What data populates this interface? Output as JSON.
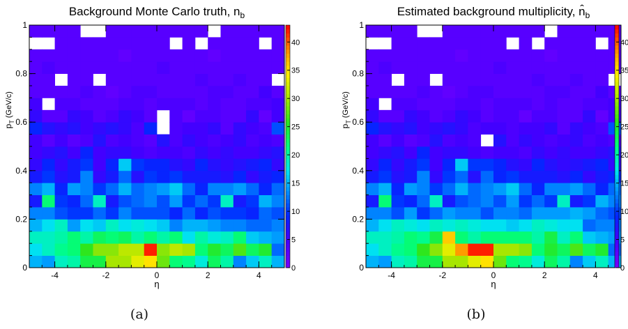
{
  "captions": [
    "(a)",
    "(b)"
  ],
  "chart_data": [
    {
      "type": "heatmap",
      "title": "Background Monte Carlo truth, n_b",
      "xlabel": "η",
      "ylabel": "p_T (GeV/c)",
      "xlim": [
        -5,
        5
      ],
      "ylim": [
        0,
        1
      ],
      "zlim": [
        0,
        43
      ],
      "x_ticks": [
        "-4",
        "-2",
        "0",
        "2",
        "4"
      ],
      "y_ticks": [
        "0",
        "0.2",
        "0.4",
        "0.6",
        "0.8",
        "1"
      ],
      "z_ticks": [
        "0",
        "5",
        "10",
        "15",
        "20",
        "25",
        "30",
        "35",
        "40"
      ],
      "x_bins": 20,
      "y_bins": 20,
      "rows_from_bottom": [
        [
          15,
          14,
          19,
          20,
          24,
          24,
          30,
          30,
          33,
          35,
          28,
          22,
          21,
          18,
          23,
          20,
          13,
          16,
          19,
          15
        ],
        [
          17,
          19,
          21,
          22,
          26,
          29,
          29,
          31,
          31,
          42,
          29,
          31,
          30,
          22,
          25,
          23,
          27,
          23,
          25,
          12
        ],
        [
          19,
          19,
          20,
          22,
          20,
          23,
          22,
          23,
          20,
          22,
          20,
          22,
          17,
          20,
          18,
          19,
          22,
          16,
          15,
          14
        ],
        [
          15,
          17,
          19,
          14,
          17,
          16,
          19,
          17,
          18,
          17,
          16,
          13,
          15,
          15,
          14,
          13,
          13,
          12,
          12,
          13
        ],
        [
          13,
          13,
          11,
          10,
          10,
          12,
          10,
          13,
          11,
          11,
          11,
          9,
          12,
          9,
          11,
          10,
          10,
          9,
          12,
          11
        ],
        [
          8,
          22,
          10,
          9,
          12,
          19,
          8,
          11,
          12,
          13,
          11,
          14,
          10,
          12,
          10,
          19,
          8,
          10,
          15,
          13
        ],
        [
          13,
          15,
          9,
          14,
          13,
          10,
          12,
          15,
          12,
          13,
          14,
          16,
          12,
          9,
          13,
          13,
          14,
          12,
          9,
          12
        ],
        [
          8,
          10,
          7,
          8,
          13,
          6,
          8,
          12,
          7,
          10,
          9,
          10,
          8,
          8,
          8,
          7,
          9,
          6,
          8,
          9
        ],
        [
          6,
          9,
          6,
          8,
          10,
          5,
          9,
          16,
          10,
          9,
          9,
          7,
          6,
          9,
          7,
          6,
          7,
          8,
          9,
          6
        ],
        [
          5,
          6,
          7,
          5,
          9,
          5,
          6,
          6,
          5,
          4,
          5,
          5,
          4,
          6,
          5,
          6,
          5,
          5,
          6,
          7
        ],
        [
          5,
          3,
          5,
          3,
          4,
          7,
          4,
          5,
          4,
          3,
          7,
          4,
          6,
          5,
          4,
          5,
          6,
          4,
          5,
          4
        ],
        [
          9,
          7,
          6,
          7,
          5,
          6,
          7,
          6,
          4,
          9,
          0,
          4,
          5,
          5,
          6,
          3,
          6,
          5,
          4,
          11
        ],
        [
          6,
          3,
          3,
          6,
          5,
          3,
          4,
          6,
          5,
          3,
          0,
          4,
          2,
          4,
          4,
          3,
          3,
          6,
          2,
          5
        ],
        [
          5,
          0,
          4,
          4,
          3,
          3,
          3,
          4,
          4,
          3,
          4,
          4,
          4,
          3,
          4,
          3,
          3,
          4,
          4,
          5
        ],
        [
          3,
          3,
          3,
          3,
          4,
          3,
          2,
          3,
          4,
          4,
          3,
          3,
          3,
          3,
          4,
          4,
          3,
          3,
          5,
          3
        ],
        [
          3,
          3,
          0,
          3,
          3,
          0,
          3,
          3,
          3,
          3,
          3,
          3,
          3,
          4,
          3,
          3,
          4,
          3,
          3,
          0
        ],
        [
          3,
          4,
          3,
          3,
          3,
          3,
          3,
          3,
          3,
          3,
          4,
          3,
          3,
          3,
          3,
          3,
          3,
          3,
          3,
          3
        ],
        [
          3,
          3,
          3,
          3,
          3,
          3,
          3,
          2,
          3,
          3,
          3,
          3,
          3,
          3,
          2,
          3,
          3,
          3,
          3,
          3
        ],
        [
          0,
          0,
          3,
          3,
          3,
          3,
          3,
          3,
          3,
          3,
          3,
          0,
          3,
          0,
          3,
          3,
          3,
          3,
          0,
          3
        ],
        [
          3,
          3,
          3,
          3,
          0,
          0,
          3,
          3,
          3,
          3,
          3,
          3,
          3,
          3,
          0,
          3,
          3,
          3,
          3,
          3
        ]
      ]
    },
    {
      "type": "heatmap",
      "title": "Estimated background multiplicity, n̂_b",
      "xlabel": "η",
      "ylabel": "p_T (GeV/c)",
      "xlim": [
        -5,
        5
      ],
      "ylim": [
        0,
        1
      ],
      "zlim": [
        0,
        43
      ],
      "x_ticks": [
        "-4",
        "-2",
        "0",
        "2",
        "4"
      ],
      "y_ticks": [
        "0",
        "0.2",
        "0.4",
        "0.6",
        "0.8",
        "1"
      ],
      "z_ticks": [
        "0",
        "5",
        "10",
        "15",
        "20",
        "25",
        "30",
        "35",
        "40"
      ],
      "x_bins": 20,
      "y_bins": 20,
      "rows_from_bottom": [
        [
          15,
          14,
          19,
          20,
          24,
          24,
          30,
          30,
          33,
          35,
          28,
          22,
          21,
          18,
          23,
          20,
          13,
          16,
          19,
          15
        ],
        [
          17,
          19,
          21,
          22,
          26,
          29,
          33,
          38,
          42,
          42,
          30,
          30,
          29,
          22,
          25,
          23,
          27,
          23,
          25,
          12
        ],
        [
          19,
          19,
          20,
          22,
          21,
          24,
          36,
          22,
          20,
          22,
          22,
          22,
          22,
          20,
          24,
          19,
          22,
          16,
          15,
          14
        ],
        [
          15,
          17,
          19,
          18,
          17,
          19,
          18,
          19,
          18,
          17,
          17,
          16,
          17,
          19,
          18,
          17,
          17,
          12,
          13,
          13
        ],
        [
          13,
          13,
          11,
          14,
          10,
          12,
          14,
          13,
          13,
          11,
          13,
          13,
          12,
          14,
          14,
          14,
          15,
          14,
          12,
          11
        ],
        [
          8,
          22,
          10,
          9,
          12,
          19,
          8,
          11,
          12,
          13,
          11,
          14,
          10,
          12,
          10,
          19,
          8,
          10,
          15,
          13
        ],
        [
          13,
          15,
          9,
          14,
          13,
          10,
          12,
          15,
          12,
          13,
          14,
          16,
          12,
          9,
          13,
          13,
          14,
          12,
          9,
          12
        ],
        [
          8,
          10,
          7,
          8,
          13,
          6,
          10,
          12,
          7,
          12,
          9,
          10,
          8,
          8,
          8,
          7,
          9,
          6,
          8,
          9
        ],
        [
          6,
          9,
          6,
          8,
          10,
          5,
          9,
          16,
          10,
          10,
          9,
          7,
          6,
          9,
          7,
          6,
          7,
          8,
          9,
          6
        ],
        [
          5,
          6,
          7,
          5,
          9,
          5,
          6,
          6,
          5,
          4,
          5,
          5,
          4,
          6,
          5,
          6,
          5,
          5,
          6,
          7
        ],
        [
          5,
          3,
          5,
          3,
          4,
          7,
          4,
          5,
          4,
          0,
          7,
          4,
          6,
          5,
          4,
          5,
          6,
          4,
          5,
          4
        ],
        [
          9,
          7,
          6,
          7,
          5,
          6,
          7,
          6,
          4,
          5,
          5,
          4,
          5,
          5,
          6,
          3,
          6,
          5,
          4,
          11
        ],
        [
          6,
          3,
          3,
          6,
          5,
          3,
          4,
          6,
          5,
          3,
          4,
          4,
          2,
          4,
          4,
          3,
          3,
          6,
          2,
          5
        ],
        [
          5,
          0,
          4,
          4,
          3,
          3,
          3,
          4,
          4,
          3,
          4,
          4,
          4,
          3,
          4,
          3,
          3,
          4,
          4,
          5
        ],
        [
          3,
          3,
          3,
          3,
          4,
          3,
          2,
          3,
          4,
          4,
          3,
          3,
          3,
          3,
          4,
          4,
          3,
          3,
          5,
          3
        ],
        [
          3,
          3,
          0,
          3,
          3,
          0,
          3,
          3,
          3,
          3,
          3,
          3,
          3,
          4,
          3,
          3,
          4,
          3,
          3,
          0
        ],
        [
          3,
          4,
          3,
          3,
          3,
          3,
          3,
          3,
          3,
          3,
          4,
          3,
          3,
          3,
          3,
          3,
          3,
          3,
          3,
          3
        ],
        [
          3,
          3,
          3,
          3,
          3,
          3,
          3,
          2,
          3,
          3,
          3,
          3,
          3,
          3,
          2,
          3,
          3,
          3,
          3,
          3
        ],
        [
          0,
          0,
          3,
          3,
          3,
          3,
          3,
          3,
          3,
          3,
          3,
          0,
          3,
          0,
          3,
          3,
          3,
          3,
          0,
          3
        ],
        [
          3,
          3,
          3,
          3,
          0,
          0,
          3,
          3,
          3,
          3,
          3,
          3,
          3,
          3,
          0,
          3,
          3,
          3,
          3,
          3
        ]
      ]
    }
  ]
}
